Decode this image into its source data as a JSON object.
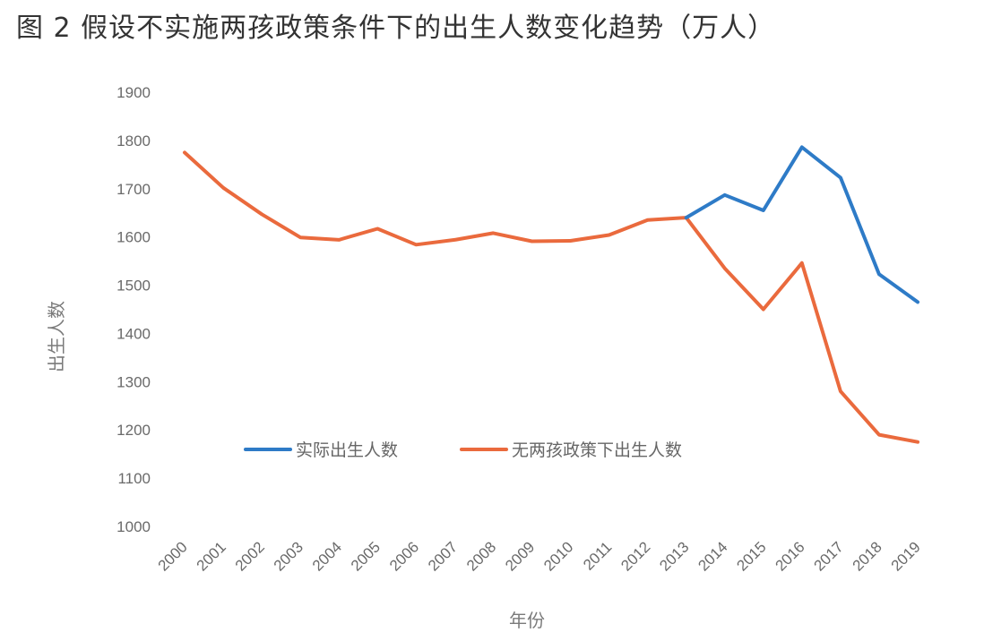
{
  "title": "图 2 假设不实施两孩政策条件下的出生人数变化趋势（万人）",
  "chart_data": {
    "type": "line",
    "ylabel": "出生人数",
    "xlabel": "年份",
    "ylim": [
      1000,
      1900
    ],
    "yticks": [
      1000,
      1100,
      1200,
      1300,
      1400,
      1500,
      1600,
      1700,
      1800,
      1900
    ],
    "categories": [
      "2000",
      "2001",
      "2002",
      "2003",
      "2004",
      "2005",
      "2006",
      "2007",
      "2008",
      "2009",
      "2010",
      "2011",
      "2012",
      "2013",
      "2014",
      "2015",
      "2016",
      "2017",
      "2018",
      "2019"
    ],
    "legend_position": "center",
    "grid": false,
    "series": [
      {
        "name": "实际出生人数",
        "color": "#2E7BC7",
        "values": [
          null,
          null,
          null,
          null,
          null,
          null,
          null,
          null,
          null,
          null,
          null,
          null,
          null,
          1640,
          1687,
          1655,
          1786,
          1723,
          1523,
          1465
        ]
      },
      {
        "name": "无两孩政策下出生人数",
        "color": "#EA6A3D",
        "values": [
          1775,
          1702,
          1647,
          1599,
          1594,
          1617,
          1584,
          1594,
          1608,
          1591,
          1592,
          1604,
          1635,
          1640,
          1535,
          1450,
          1546,
          1280,
          1190,
          1175
        ]
      }
    ]
  }
}
